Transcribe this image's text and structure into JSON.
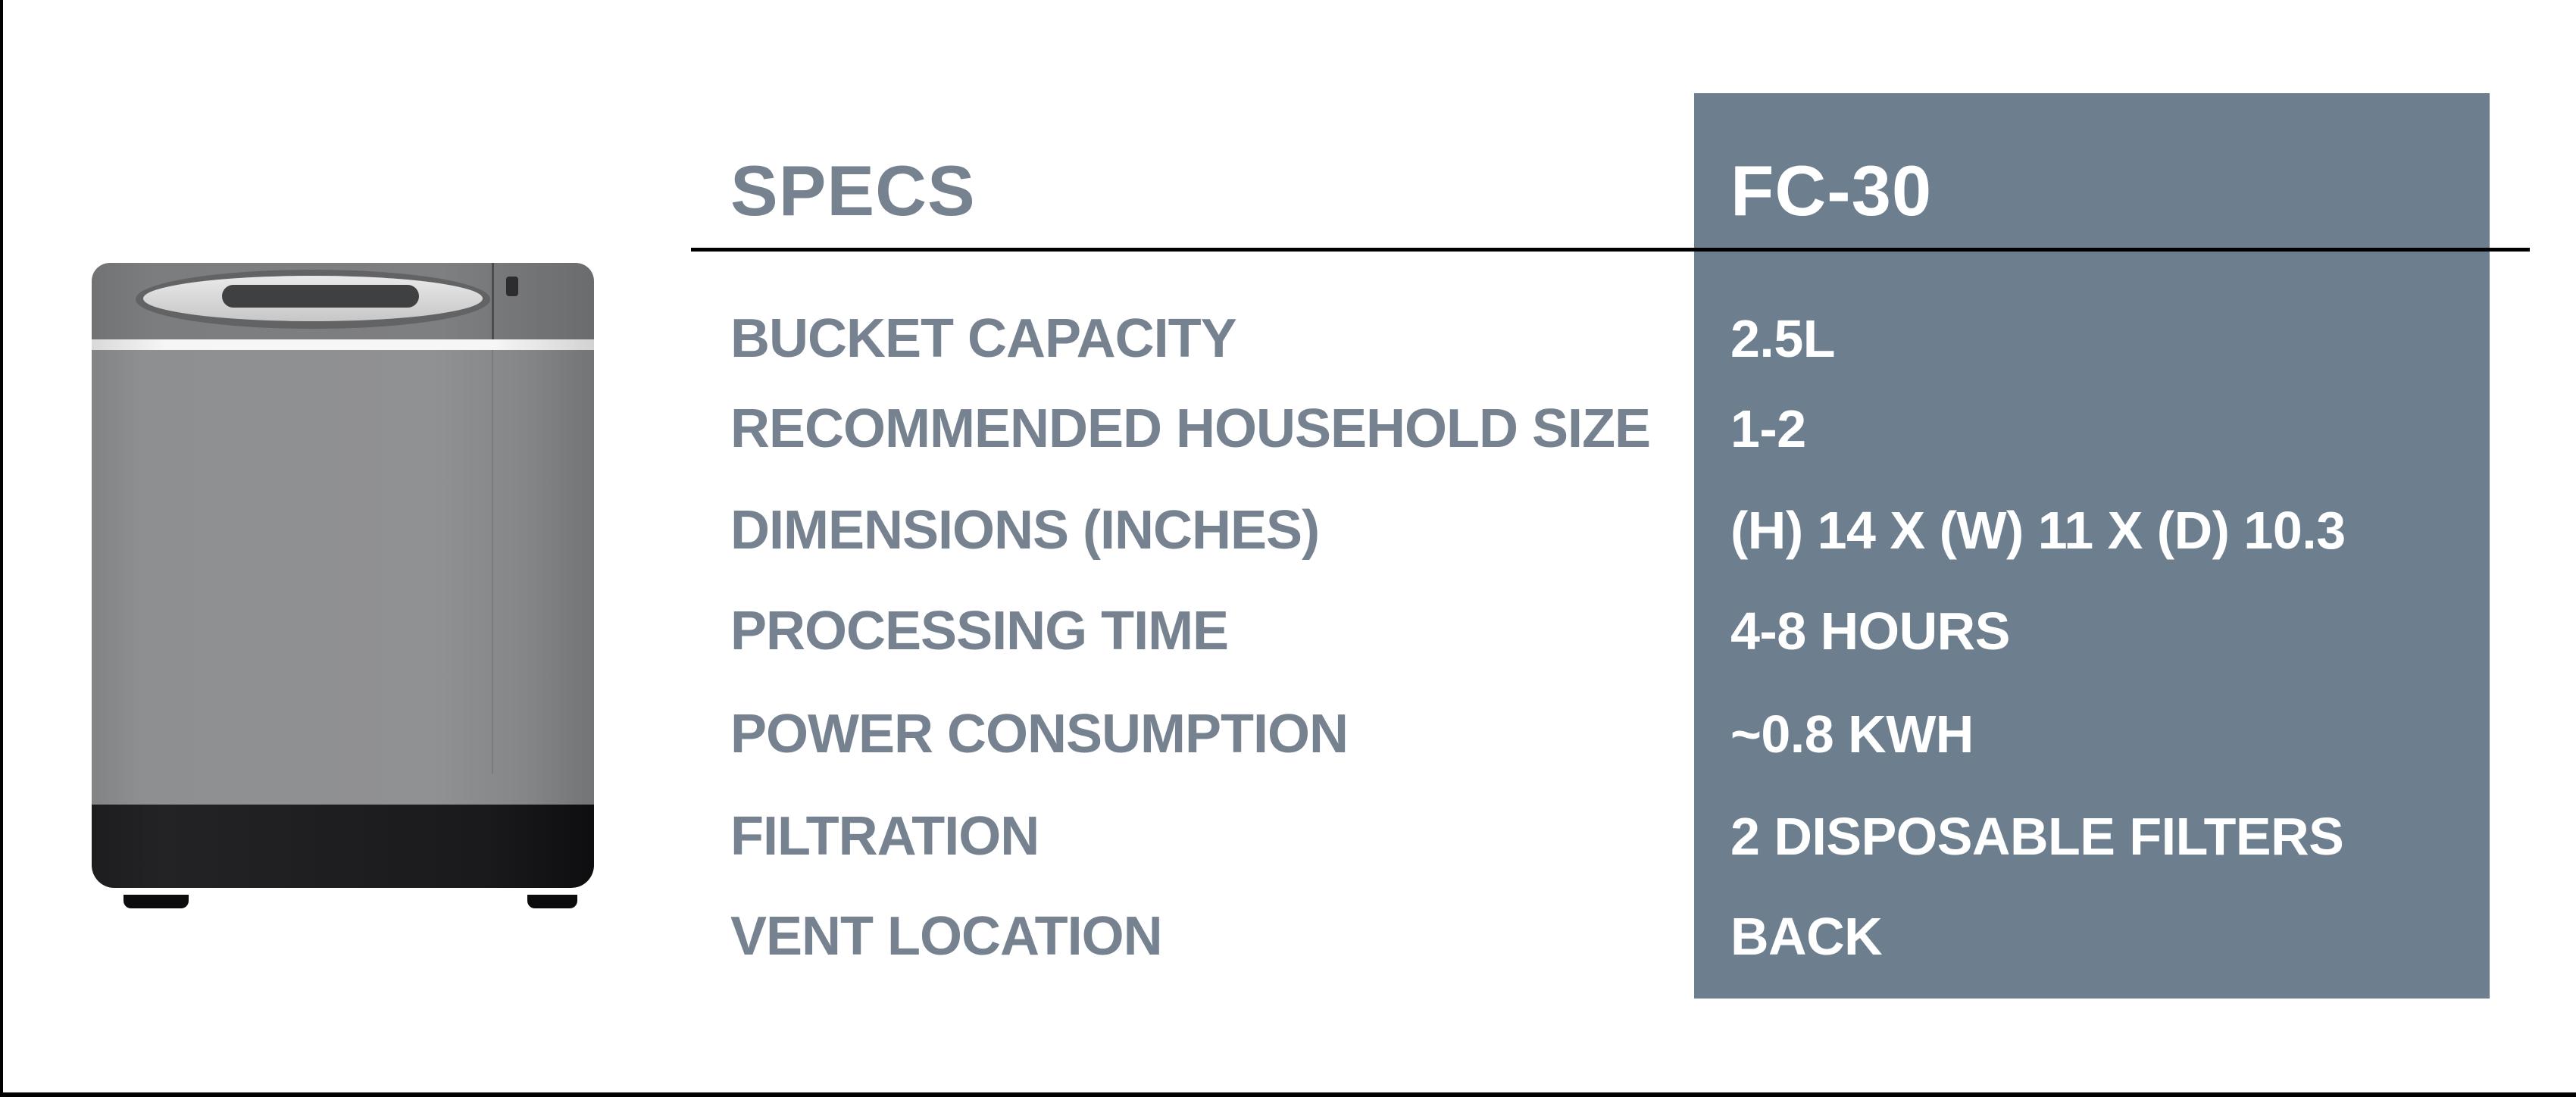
{
  "theme": {
    "colors": {
      "page-bg": "#FFFFFF",
      "frame": "#000000",
      "panel": "#6D7F8F",
      "label": "#76828F",
      "value": "#FFFFFF"
    }
  },
  "table": {
    "header": {
      "specs_label": "SPECS",
      "model_label": "FC-30"
    },
    "rows": [
      {
        "label": "BUCKET CAPACITY",
        "value": "2.5L"
      },
      {
        "label": "RECOMMENDED HOUSEHOLD SIZE",
        "value": "1-2"
      },
      {
        "label": "DIMENSIONS (INCHES)",
        "value": "(H) 14 X (W) 11 X (D) 10.3"
      },
      {
        "label": "PROCESSING TIME",
        "value": "4-8 HOURS"
      },
      {
        "label": "POWER CONSUMPTION",
        "value": "~0.8 KWH"
      },
      {
        "label": "FILTRATION",
        "value": "2 DISPOSABLE FILTERS"
      },
      {
        "label": "VENT LOCATION",
        "value": "BACK"
      }
    ]
  },
  "product_image": {
    "name": "FC-30 countertop food composter, front view",
    "body_color": "#8E8F91",
    "lid_color": "#7C7D7F",
    "base_color": "#1A1A1C"
  }
}
